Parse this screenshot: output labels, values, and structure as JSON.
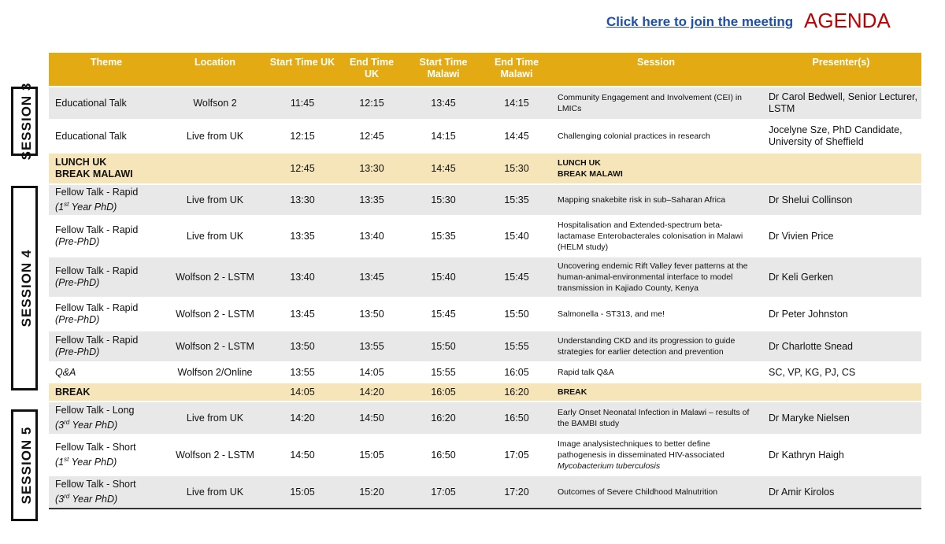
{
  "header": {
    "join_link": "Click here to join the meeting",
    "title": "AGENDA"
  },
  "sessions": [
    {
      "label": "SESSION 3"
    },
    {
      "label": "SESSION 4"
    },
    {
      "label": "SESSION 5"
    }
  ],
  "columns": {
    "theme": "Theme",
    "location": "Location",
    "start_uk": "Start Time UK",
    "end_uk": "End Time UK",
    "start_malawi": "Start Time Malawi",
    "end_malawi": "End Time Malawi",
    "session": "Session",
    "presenters": "Presenter(s)"
  },
  "rows": [
    {
      "theme": "Educational Talk",
      "sub": "",
      "location": "Wolfson 2",
      "start_uk": "11:45",
      "end_uk": "12:15",
      "start_mw": "13:45",
      "end_mw": "14:15",
      "session": "Community Engagement  and Involvement (CEI) in LMICs",
      "presenter": "Dr Carol Bedwell, Senior Lecturer, LSTM"
    },
    {
      "theme": "Educational Talk",
      "sub": "",
      "location": "Live from UK",
      "start_uk": "12:15",
      "end_uk": "12:45",
      "start_mw": "14:15",
      "end_mw": "14:45",
      "session": "Challenging colonial practices in research",
      "presenter": "Jocelyne Sze, PhD Candidate, University of Sheffield"
    },
    {
      "theme": "LUNCH UK",
      "theme2": "BREAK MALAWI",
      "location": "",
      "start_uk": "12:45",
      "end_uk": "13:30",
      "start_mw": "14:45",
      "end_mw": "15:30",
      "session": "LUNCH UK",
      "session2": "BREAK  MALAWI",
      "presenter": ""
    },
    {
      "theme": "Fellow Talk - Rapid",
      "sub_pre": "(1",
      "sub_sup": "st",
      "sub_post": " Year PhD)",
      "location": "Live from UK",
      "start_uk": "13:30",
      "end_uk": "13:35",
      "start_mw": "15:30",
      "end_mw": "15:35",
      "session": "Mapping snakebite risk in sub–Saharan Africa",
      "presenter": "Dr Shelui Collinson"
    },
    {
      "theme": "Fellow Talk - Rapid",
      "sub": "(Pre-PhD)",
      "location": "Live from UK",
      "start_uk": "13:35",
      "end_uk": "13:40",
      "start_mw": "15:35",
      "end_mw": "15:40",
      "session": "Hospitalisation and Extended-spectrum beta-lactamase Enterobacterales colonisation in Malawi (HELM study)",
      "presenter": "Dr Vivien Price"
    },
    {
      "theme": "Fellow Talk - Rapid",
      "sub": "(Pre-PhD)",
      "location": "Wolfson 2 - LSTM",
      "start_uk": "13:40",
      "end_uk": "13:45",
      "start_mw": "15:40",
      "end_mw": "15:45",
      "session": "Uncovering endemic Rift Valley fever patterns at the human-animal-environmental interface to model transmission in Kajiado County, Kenya",
      "presenter": "Dr Keli Gerken"
    },
    {
      "theme": "Fellow Talk - Rapid",
      "sub": "(Pre-PhD)",
      "location": "Wolfson 2 - LSTM",
      "start_uk": "13:45",
      "end_uk": "13:50",
      "start_mw": "15:45",
      "end_mw": "15:50",
      "session": "Salmonella - ST313, and me!",
      "presenter": "Dr Peter Johnston"
    },
    {
      "theme": "Fellow Talk - Rapid",
      "sub": "(Pre-PhD)",
      "location": "Wolfson 2 - LSTM",
      "start_uk": "13:50",
      "end_uk": "13:55",
      "start_mw": "15:50",
      "end_mw": "15:55",
      "session": "Understanding CKD and its progression to guide strategies for earlier detection and prevention",
      "presenter": "Dr Charlotte Snead"
    },
    {
      "theme": "Q&A",
      "sub": "",
      "location": "Wolfson 2/Online",
      "start_uk": "13:55",
      "end_uk": "14:05",
      "start_mw": "15:55",
      "end_mw": "16:05",
      "session": "Rapid talk Q&A",
      "presenter": "SC, VP, KG, PJ, CS"
    },
    {
      "theme": "BREAK",
      "location": "",
      "start_uk": "14:05",
      "end_uk": "14:20",
      "start_mw": "16:05",
      "end_mw": "16:20",
      "session": "BREAK",
      "presenter": ""
    },
    {
      "theme": "Fellow Talk - Long",
      "sub_pre": "(3",
      "sub_sup": "rd",
      "sub_post": " Year PhD)",
      "location": "Live from UK",
      "start_uk": "14:20",
      "end_uk": "14:50",
      "start_mw": "16:20",
      "end_mw": "16:50",
      "session": "Early Onset Neonatal Infection in Malawi – results of the BAMBI study",
      "presenter": "Dr Maryke Nielsen"
    },
    {
      "theme": "Fellow Talk - Short",
      "sub_pre": "(1",
      "sub_sup": "st",
      "sub_post": " Year PhD)",
      "location": "Wolfson 2 - LSTM",
      "start_uk": "14:50",
      "end_uk": "15:05",
      "start_mw": "16:50",
      "end_mw": "17:05",
      "session": "Image analysistechniques to better  define pathogenesis in disseminated HIV-associated",
      "session_italic": "Mycobacterium  tuberculosis",
      "presenter": "Dr Kathryn Haigh"
    },
    {
      "theme": "Fellow Talk - Short",
      "sub_pre": "(3",
      "sub_sup": "rd",
      "sub_post": " Year PhD)",
      "location": "Live from UK",
      "start_uk": "15:05",
      "end_uk": "15:20",
      "start_mw": "17:05",
      "end_mw": "17:20",
      "session": "Outcomes of Severe  Childhood Malnutrition",
      "presenter": "Dr Amir Kirolos"
    }
  ]
}
